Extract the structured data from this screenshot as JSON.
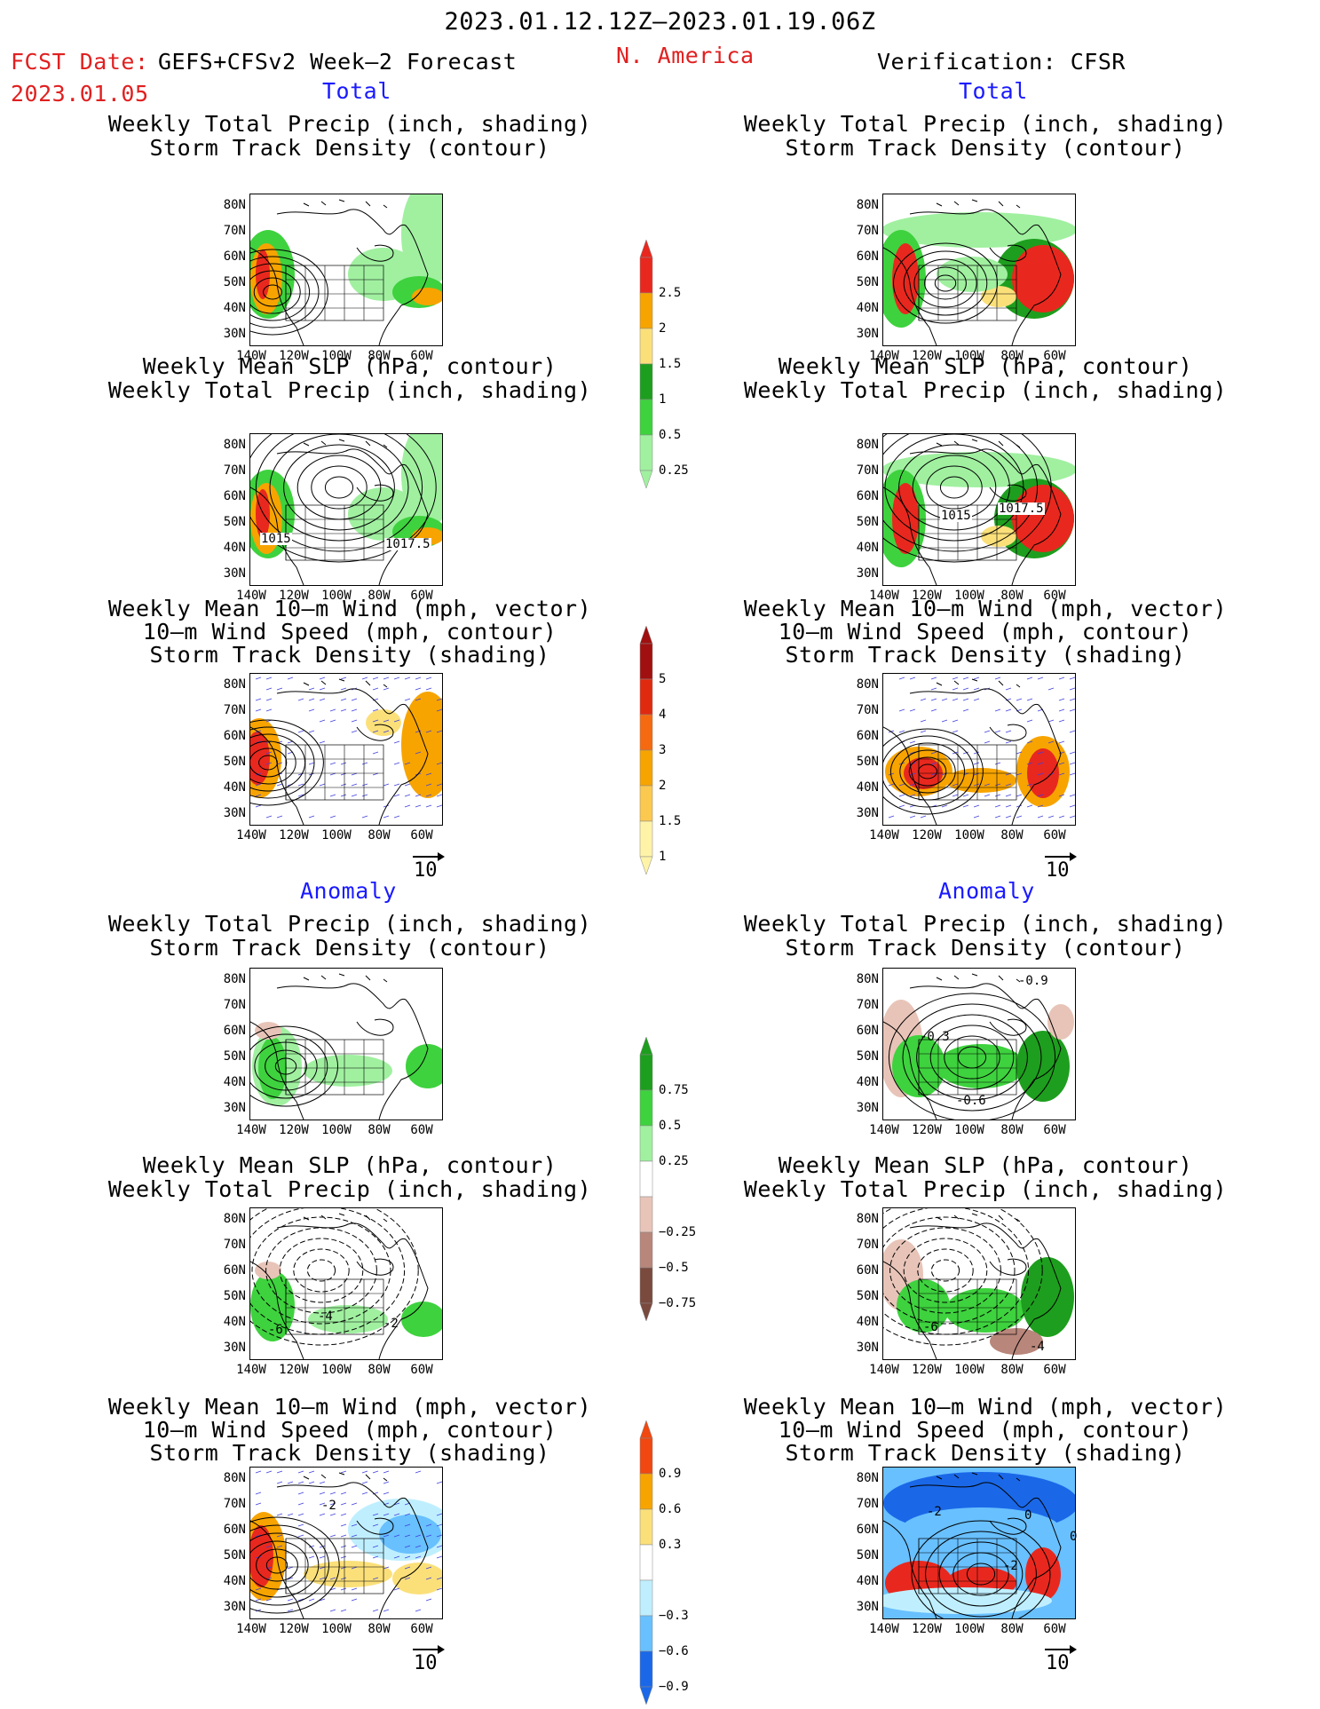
{
  "header": {
    "period": "2023.01.12.12Z–2023.01.19.06Z",
    "fcst_label": "FCST Date:",
    "fcst_model": "GEFS+CFSv2 Week–2 Forecast",
    "fcst_date": "2023.01.05",
    "region": "N. America",
    "verification": "Verification: CFSR"
  },
  "sections": {
    "total_left": "Total",
    "total_right": "Total",
    "anom_left": "Anomaly",
    "anom_right": "Anomaly"
  },
  "titles": {
    "precip_a": "Weekly Total Precip (inch, shading)",
    "precip_b": "Storm Track Density (contour)",
    "slp_a": "Weekly Mean SLP (hPa, contour)",
    "slp_b": "Weekly Total Precip (inch, shading)",
    "wind_a": "Weekly Mean 10–m Wind (mph, vector)",
    "wind_b": "10–m Wind Speed (mph, contour)",
    "wind_c": "Storm Track Density (shading)"
  },
  "axes": {
    "lat": [
      "80N",
      "70N",
      "60N",
      "50N",
      "40N",
      "30N"
    ],
    "lon": [
      "140W",
      "120W",
      "100W",
      "80W",
      "60W"
    ]
  },
  "vector_ref": "10",
  "contour_labels": {
    "slp_total_fcst": [
      "1015",
      "1017.5"
    ],
    "slp_total_ver": [
      "1015",
      "1017.5"
    ],
    "slp_anom_fcst": [
      "-6",
      "-4",
      "-2"
    ],
    "slp_anom_ver": [
      "-6",
      "-4"
    ],
    "precip_anom_ver": [
      "-0.3",
      "-0.9",
      "-0.6"
    ],
    "wind_anom_fcst": [
      "-2"
    ],
    "wind_anom_ver": [
      "-2",
      "0",
      "0",
      "-2"
    ]
  },
  "colorbars": {
    "precip_total": {
      "labels": [
        "2.5",
        "2",
        "1.5",
        "1",
        "0.5",
        "0.25"
      ],
      "colors": [
        "#e8281e",
        "#f7a400",
        "#fbe07a",
        "#1e9e1e",
        "#3ed23e",
        "#a0f0a0"
      ]
    },
    "storm_total": {
      "labels": [
        "5",
        "4",
        "3",
        "2",
        "1.5",
        "1"
      ],
      "colors": [
        "#a01010",
        "#e02a10",
        "#f56a10",
        "#f7a400",
        "#fbc850",
        "#fff3a8"
      ]
    },
    "precip_anom": {
      "labels": [
        "0.75",
        "0.5",
        "0.25",
        "−0.25",
        "−0.5",
        "−0.75"
      ],
      "colors": [
        "#1e9e1e",
        "#3ed23e",
        "#a0f0a0",
        "#ffffff",
        "#e8c4b8",
        "#b8867a",
        "#7a4a3e"
      ]
    },
    "storm_anom": {
      "labels": [
        "0.9",
        "0.6",
        "0.3",
        "−0.3",
        "−0.6",
        "−0.9"
      ],
      "colors": [
        "#f04810",
        "#f7a400",
        "#fbe07a",
        "#ffffff",
        "#bfefff",
        "#68c0ff",
        "#1a68e8"
      ]
    }
  }
}
